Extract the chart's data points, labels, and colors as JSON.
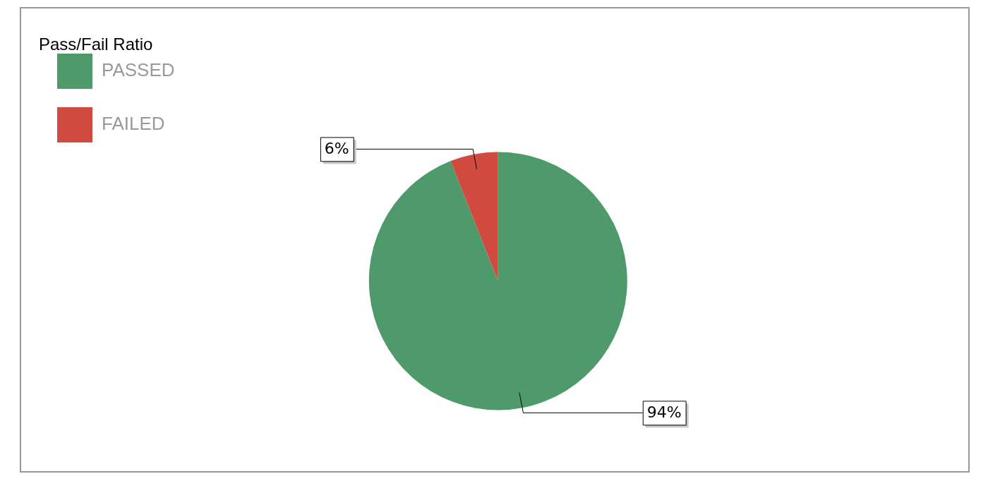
{
  "chart_data": {
    "type": "pie",
    "title": "Pass/Fail Ratio",
    "categories": [
      "PASSED",
      "FAILED"
    ],
    "values": [
      94,
      6
    ],
    "colors": [
      "#4f9a6a",
      "#d04a40"
    ],
    "value_labels": [
      "94%",
      "6%"
    ],
    "legend": "top left"
  }
}
